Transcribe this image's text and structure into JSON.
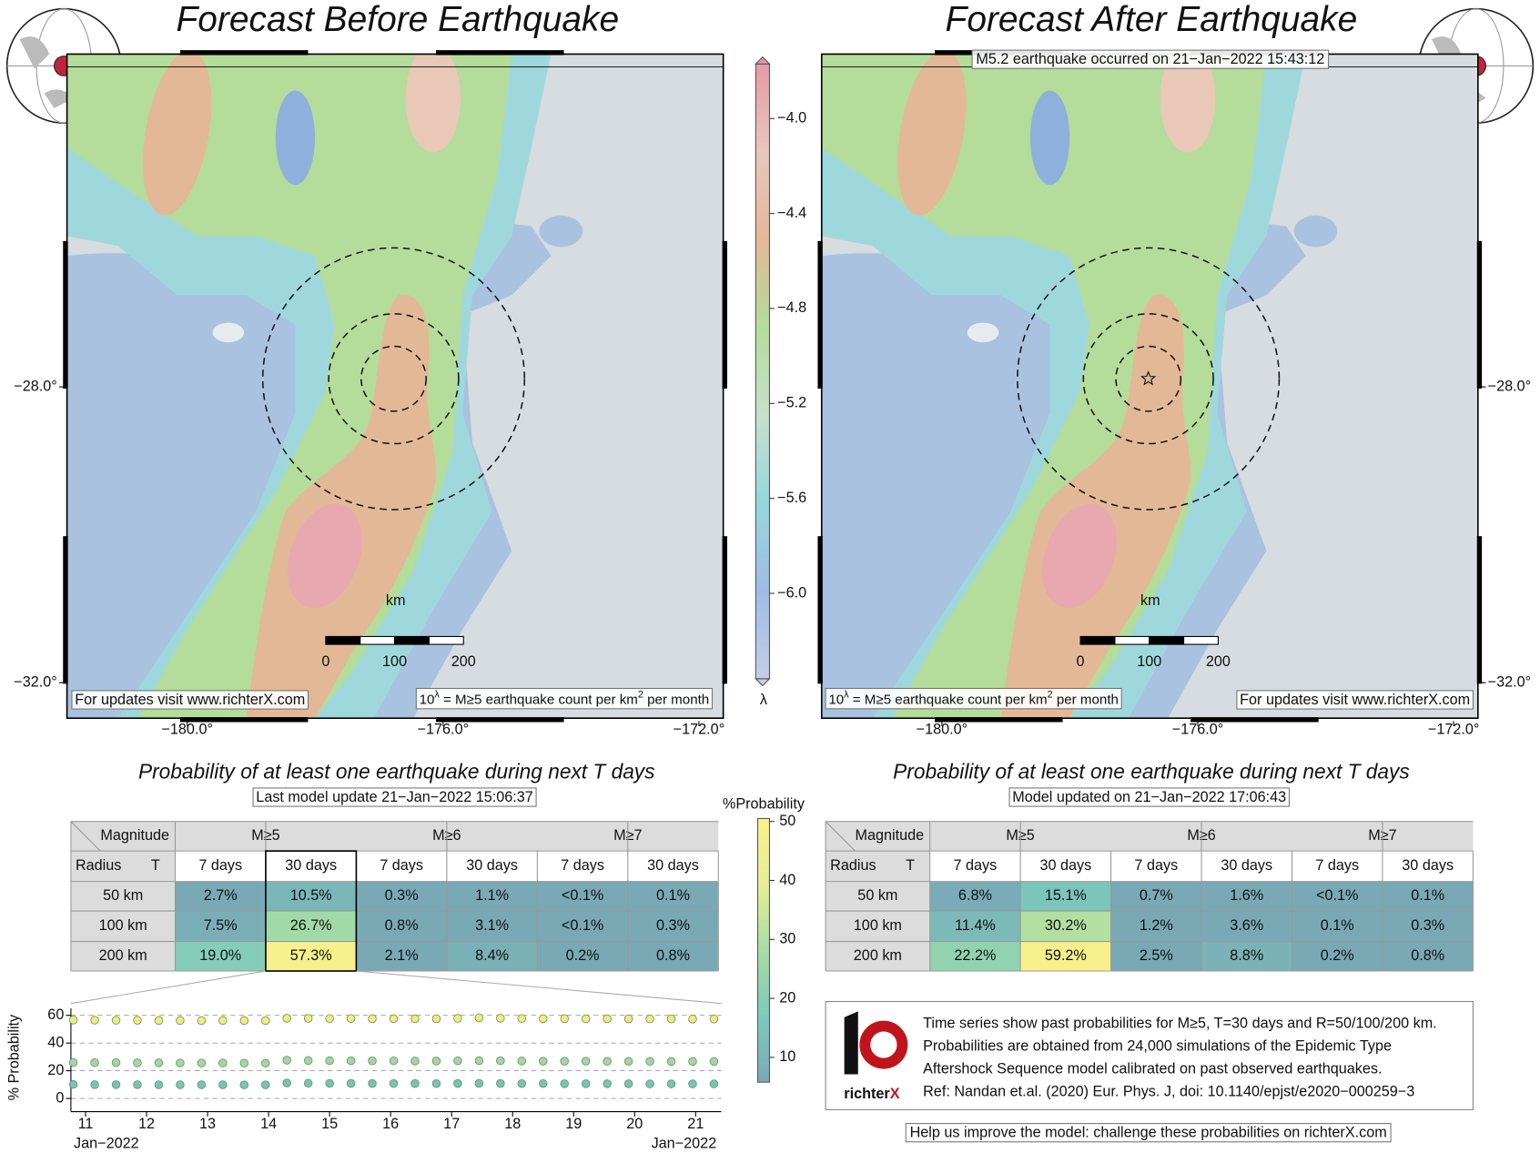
{
  "left_map": {
    "title": "Forecast Before Earthquake",
    "footer_link": "For updates visit www.richterX.com",
    "scale_unit": "km",
    "scale_ticks": [
      0,
      100,
      200
    ]
  },
  "right_map": {
    "title": "Forecast After Earthquake",
    "event": "M5.2 earthquake occurred on 21−Jan−2022 15:43:12",
    "footer_link": "For updates visit www.richterX.com",
    "scale_unit": "km",
    "scale_ticks": [
      0,
      100,
      200
    ]
  },
  "map_axes": {
    "xlim": [
      -181.88,
      -171.62
    ],
    "ylim": [
      -32.48,
      -23.5
    ],
    "xticks": [
      {
        "value": -180,
        "label": "−180.0°"
      },
      {
        "value": -176,
        "label": "−176.0°"
      },
      {
        "value": -172,
        "label": "−172.0°"
      }
    ],
    "yticks": [
      {
        "value": -28,
        "label": "−28.0°"
      },
      {
        "value": -32,
        "label": "−32.0°"
      }
    ]
  },
  "rate_note": {
    "base": "10",
    "exponent": "λ",
    "middle": " = M≥5 earthquake count per km",
    "power": "2",
    "end": " per month"
  },
  "lambda_colorbar": {
    "label": "λ",
    "lim": [
      -6.36,
      -3.77
    ],
    "ticks": [
      {
        "value": -4.0,
        "label": "−4.0"
      },
      {
        "value": -4.4,
        "label": "−4.4"
      },
      {
        "value": -4.8,
        "label": "−4.8"
      },
      {
        "value": -5.2,
        "label": "−5.2"
      },
      {
        "value": -5.6,
        "label": "−5.6"
      },
      {
        "value": -6.0,
        "label": "−6.0"
      }
    ],
    "colors": [
      "#c2cde8",
      "#9fbce4",
      "#95d6de",
      "#c6e0cc",
      "#b4dc9a",
      "#e3b896",
      "#e9c6bd",
      "#e49aa5"
    ]
  },
  "prob_colorbar": {
    "label": "%Probability",
    "lim": [
      5.8,
      50.5
    ],
    "ticks": [
      10,
      20,
      30,
      40,
      50
    ],
    "colors": [
      "#7aa9b6",
      "#7ccbbc",
      "#a8dca4",
      "#e6ee94",
      "#f8f08c"
    ]
  },
  "before_table": {
    "title": "Probability of at least one earthquake during next T days",
    "update": "Last model update 21−Jan−2022 15:06:37",
    "corner_top": "Magnitude",
    "corner_left": "Radius",
    "corner_right": "T",
    "magnitudes": [
      "M≥5",
      "M≥6",
      "M≥7"
    ],
    "periods": [
      "7 days",
      "30 days",
      "7 days",
      "30 days",
      "7 days",
      "30 days"
    ],
    "rows": [
      {
        "radius": "50 km",
        "cells": [
          "2.7%",
          "10.5%",
          "0.3%",
          "1.1%",
          "<0.1%",
          "0.1%"
        ]
      },
      {
        "radius": "100 km",
        "cells": [
          "7.5%",
          "26.7%",
          "0.8%",
          "3.1%",
          "<0.1%",
          "0.3%"
        ]
      },
      {
        "radius": "200 km",
        "cells": [
          "19.0%",
          "57.3%",
          "2.1%",
          "8.4%",
          "0.2%",
          "0.8%"
        ]
      }
    ]
  },
  "after_table": {
    "title": "Probability of at least one earthquake during next T days",
    "update": "Model updated on 21−Jan−2022 17:06:43",
    "corner_top": "Magnitude",
    "corner_left": "Radius",
    "corner_right": "T",
    "magnitudes": [
      "M≥5",
      "M≥6",
      "M≥7"
    ],
    "periods": [
      "7 days",
      "30 days",
      "7 days",
      "30 days",
      "7 days",
      "30 days"
    ],
    "rows": [
      {
        "radius": "50 km",
        "cells": [
          "6.8%",
          "15.1%",
          "0.7%",
          "1.6%",
          "<0.1%",
          "0.1%"
        ]
      },
      {
        "radius": "100 km",
        "cells": [
          "11.4%",
          "30.2%",
          "1.2%",
          "3.6%",
          "0.1%",
          "0.3%"
        ]
      },
      {
        "radius": "200 km",
        "cells": [
          "22.2%",
          "59.2%",
          "2.5%",
          "8.8%",
          "0.2%",
          "0.8%"
        ]
      }
    ]
  },
  "timeseries": {
    "type": "scatter",
    "ylabel": "% Probability",
    "date_label": "Jan−2022",
    "x": [
      10.8,
      11.15,
      11.5,
      11.85,
      12.2,
      12.55,
      12.9,
      13.25,
      13.6,
      13.95,
      14.3,
      14.65,
      15,
      15.35,
      15.7,
      16.05,
      16.4,
      16.75,
      17.1,
      17.45,
      17.8,
      18.15,
      18.5,
      18.85,
      19.2,
      19.55,
      19.9,
      20.25,
      20.6,
      20.95,
      21.3
    ],
    "xlim": [
      10.76,
      21.42
    ],
    "xticks": [
      11,
      12,
      13,
      14,
      15,
      16,
      17,
      18,
      19,
      20,
      21
    ],
    "ylim": [
      -6,
      65
    ],
    "yticks": [
      0,
      20,
      40,
      60
    ],
    "grid": true,
    "series": [
      {
        "color": "#f3ec7a",
        "values": [
          56.6,
          56.5,
          56.4,
          56.4,
          56.3,
          56.3,
          56.2,
          56.3,
          56.2,
          56.2,
          57.9,
          57.8,
          57.7,
          57.7,
          57.6,
          57.6,
          57.5,
          57.5,
          57.8,
          58.2,
          57.9,
          57.7,
          57.6,
          57.6,
          57.5,
          57.5,
          57.4,
          57.4,
          57.4,
          57.3,
          57.3
        ]
      },
      {
        "color": "#a4d89a",
        "values": [
          25.9,
          25.8,
          25.8,
          25.7,
          25.7,
          25.6,
          25.6,
          25.6,
          25.5,
          25.5,
          27.6,
          27.4,
          27.3,
          27.2,
          27.1,
          27.1,
          27.0,
          27.0,
          27.1,
          27.3,
          27.2,
          27.0,
          26.9,
          26.9,
          26.9,
          26.8,
          26.8,
          26.8,
          26.7,
          26.7,
          26.7
        ]
      },
      {
        "color": "#74c6b4",
        "values": [
          10.1,
          10.0,
          10.0,
          10.0,
          9.9,
          9.9,
          9.9,
          9.9,
          9.8,
          9.8,
          11.2,
          11.0,
          10.9,
          10.9,
          10.8,
          10.8,
          10.8,
          10.7,
          10.8,
          10.9,
          10.8,
          10.7,
          10.7,
          10.6,
          10.6,
          10.6,
          10.6,
          10.5,
          10.5,
          10.5,
          10.5
        ]
      }
    ]
  },
  "info": {
    "lines": [
      "Time series show past probabilities for M≥5, T=30 days and R=50/100/200 km.",
      "Probabilities are obtained from 24,000 simulations of the Epidemic Type",
      "Aftershock Sequence model calibrated on past observed earthquakes.",
      "Ref: Nandan et.al. (2020) Eur. Phys. J, doi: 10.1140/epjst/e2020−000259−3"
    ],
    "logo_name": "richter",
    "logo_suffix": "X",
    "footer": "Help us improve the model: challenge these probabilities on richterX.com"
  }
}
